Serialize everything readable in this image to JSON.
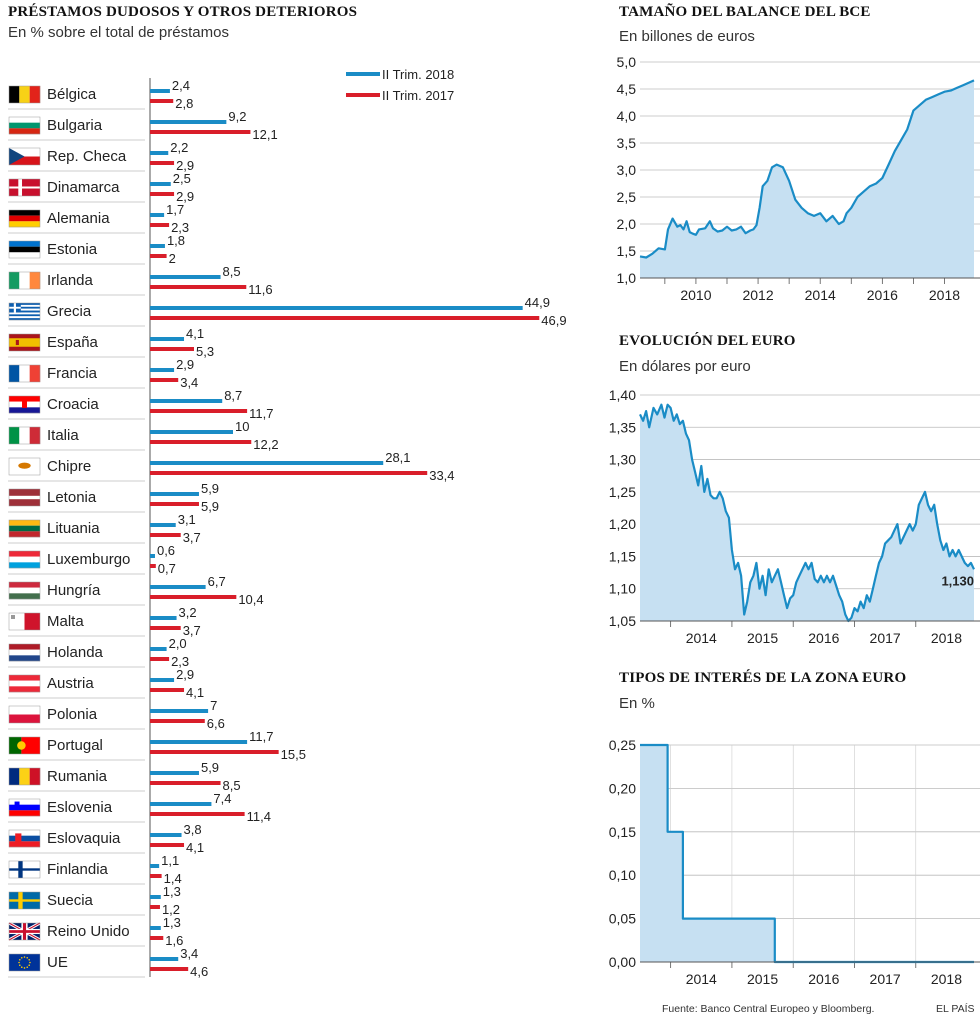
{
  "source": "Fuente: Banco Central Europeo y Bloomberg.",
  "credit": "EL PAÍS",
  "chart_data": [
    {
      "type": "bar",
      "title": "PRÉSTAMOS DUDOSOS Y OTROS DETERIOROS",
      "subtitle": "En % sobre el total de préstamos",
      "orientation": "horizontal",
      "legend_position": "top-right",
      "colors": {
        "2018": "#1a8cc6",
        "2017": "#d91e2a"
      },
      "categories": [
        "Bélgica",
        "Bulgaria",
        "Rep. Checa",
        "Dinamarca",
        "Alemania",
        "Estonia",
        "Irlanda",
        "Grecia",
        "España",
        "Francia",
        "Croacia",
        "Italia",
        "Chipre",
        "Letonia",
        "Lituania",
        "Luxemburgo",
        "Hungría",
        "Malta",
        "Holanda",
        "Austria",
        "Polonia",
        "Portugal",
        "Rumania",
        "Eslovenia",
        "Eslovaquia",
        "Finlandia",
        "Suecia",
        "Reino Unido",
        "UE"
      ],
      "flags": [
        "belgium",
        "bulgaria",
        "czech",
        "denmark",
        "germany",
        "estonia",
        "ireland",
        "greece",
        "spain",
        "france",
        "croatia",
        "italy",
        "cyprus",
        "latvia",
        "lithuania",
        "luxembourg",
        "hungary",
        "malta",
        "netherlands",
        "austria",
        "poland",
        "portugal",
        "romania",
        "slovenia",
        "slovakia",
        "finland",
        "sweden",
        "uk",
        "eu"
      ],
      "series": [
        {
          "name": "II Trim. 2018",
          "values": [
            2.4,
            9.2,
            2.2,
            2.5,
            1.7,
            1.8,
            8.5,
            44.9,
            4.1,
            2.9,
            8.7,
            10,
            28.1,
            5.9,
            3.1,
            0.6,
            6.7,
            3.2,
            2.0,
            2.9,
            7,
            11.7,
            5.9,
            7.4,
            3.8,
            1.1,
            1.3,
            1.3,
            3.4
          ],
          "labels": [
            "2,4",
            "9,2",
            "2,2",
            "2,5",
            "1,7",
            "1,8",
            "8,5",
            "44,9",
            "4,1",
            "2,9",
            "8,7",
            "10",
            "28,1",
            "5,9",
            "3,1",
            "0,6",
            "6,7",
            "3,2",
            "2,0",
            "2,9",
            "7",
            "11,7",
            "5,9",
            "7,4",
            "3,8",
            "1,1",
            "1,3",
            "1,3",
            "3,4"
          ]
        },
        {
          "name": "II Trim. 2017",
          "values": [
            2.8,
            12.1,
            2.9,
            2.9,
            2.3,
            2,
            11.6,
            46.9,
            5.3,
            3.4,
            11.7,
            12.2,
            33.4,
            5.9,
            3.7,
            0.7,
            10.4,
            3.7,
            2.3,
            4.1,
            6.6,
            15.5,
            8.5,
            11.4,
            4.1,
            1.4,
            1.2,
            1.6,
            4.6
          ],
          "labels": [
            "2,8",
            "12,1",
            "2,9",
            "2,9",
            "2,3",
            "2",
            "11,6",
            "46,9",
            "5,3",
            "3,4",
            "11,7",
            "12,2",
            "33,4",
            "5,9",
            "3,7",
            "0,7",
            "10,4",
            "3,7",
            "2,3",
            "4,1",
            "6,6",
            "15,5",
            "8,5",
            "11,4",
            "4,1",
            "1,4",
            "1,2",
            "1,6",
            "4,6"
          ]
        }
      ]
    },
    {
      "type": "area",
      "title": "TAMAÑO DEL BALANCE DEL BCE",
      "subtitle": "En billones de euros",
      "color": "#1a8cc6",
      "fill": "#c6e0f2",
      "xlim": [
        2008.2,
        2018.95
      ],
      "ylim": [
        1.0,
        5.0
      ],
      "x_ticks": [
        2010,
        2012,
        2014,
        2016,
        2018
      ],
      "x_tick_labels": [
        "2010",
        "2012",
        "2014",
        "2016",
        "2018"
      ],
      "y_ticks": [
        1.0,
        1.5,
        2.0,
        2.5,
        3.0,
        3.5,
        4.0,
        4.5,
        5.0
      ],
      "y_tick_labels": [
        "1,0",
        "1,5",
        "2,0",
        "2,5",
        "3,0",
        "3,5",
        "4,0",
        "4,5",
        "5,0"
      ],
      "grid": true,
      "x": [
        2008.2,
        2008.4,
        2008.6,
        2008.8,
        2009.0,
        2009.1,
        2009.25,
        2009.4,
        2009.5,
        2009.6,
        2009.7,
        2009.8,
        2009.9,
        2010.0,
        2010.1,
        2010.3,
        2010.45,
        2010.55,
        2010.7,
        2010.85,
        2011.0,
        2011.15,
        2011.3,
        2011.45,
        2011.6,
        2011.75,
        2011.85,
        2011.95,
        2012.05,
        2012.15,
        2012.3,
        2012.45,
        2012.6,
        2012.8,
        2013.0,
        2013.2,
        2013.4,
        2013.6,
        2013.8,
        2014.0,
        2014.2,
        2014.4,
        2014.6,
        2014.75,
        2014.85,
        2015.0,
        2015.2,
        2015.4,
        2015.6,
        2015.8,
        2016.0,
        2016.2,
        2016.4,
        2016.6,
        2016.8,
        2017.0,
        2017.2,
        2017.4,
        2017.6,
        2017.8,
        2018.0,
        2018.2,
        2018.4,
        2018.6,
        2018.8,
        2018.95
      ],
      "y": [
        1.4,
        1.38,
        1.45,
        1.55,
        1.53,
        1.9,
        2.1,
        1.95,
        1.98,
        1.9,
        2.05,
        1.85,
        1.82,
        1.8,
        1.9,
        1.92,
        2.05,
        1.92,
        1.86,
        1.88,
        1.95,
        1.88,
        1.9,
        1.95,
        1.83,
        1.88,
        1.9,
        1.98,
        2.3,
        2.7,
        2.8,
        3.05,
        3.1,
        3.05,
        2.8,
        2.45,
        2.3,
        2.2,
        2.15,
        2.2,
        2.05,
        2.15,
        2.0,
        2.05,
        2.2,
        2.3,
        2.5,
        2.6,
        2.7,
        2.75,
        2.85,
        3.1,
        3.35,
        3.55,
        3.75,
        4.1,
        4.2,
        4.3,
        4.35,
        4.4,
        4.45,
        4.47,
        4.52,
        4.57,
        4.62,
        4.66
      ]
    },
    {
      "type": "line",
      "title": "EVOLUCIÓN DEL EURO",
      "subtitle": "En dólares por euro",
      "color": "#1a8cc6",
      "fill": "#c6e0f2",
      "xlim": [
        2013.5,
        2018.95
      ],
      "ylim": [
        1.05,
        1.4
      ],
      "x_ticks": [
        2014,
        2015,
        2016,
        2017,
        2018
      ],
      "x_tick_labels": [
        "2014",
        "2015",
        "2016",
        "2017",
        "2018"
      ],
      "y_ticks": [
        1.05,
        1.1,
        1.15,
        1.2,
        1.25,
        1.3,
        1.35,
        1.4
      ],
      "y_tick_labels": [
        "1,05",
        "1,10",
        "1,15",
        "1,20",
        "1,25",
        "1,30",
        "1,35",
        "1,40"
      ],
      "grid": true,
      "annotation": "1,130",
      "x": [
        2013.5,
        2013.55,
        2013.6,
        2013.65,
        2013.72,
        2013.78,
        2013.85,
        2013.9,
        2013.95,
        2014.0,
        2014.05,
        2014.1,
        2014.15,
        2014.2,
        2014.25,
        2014.3,
        2014.35,
        2014.4,
        2014.45,
        2014.5,
        2014.55,
        2014.6,
        2014.65,
        2014.7,
        2014.75,
        2014.8,
        2014.85,
        2014.9,
        2014.95,
        2015.0,
        2015.05,
        2015.1,
        2015.15,
        2015.2,
        2015.25,
        2015.3,
        2015.35,
        2015.4,
        2015.45,
        2015.5,
        2015.55,
        2015.6,
        2015.65,
        2015.7,
        2015.75,
        2015.8,
        2015.85,
        2015.9,
        2015.95,
        2016.0,
        2016.05,
        2016.1,
        2016.15,
        2016.2,
        2016.25,
        2016.3,
        2016.35,
        2016.4,
        2016.45,
        2016.5,
        2016.55,
        2016.6,
        2016.65,
        2016.7,
        2016.75,
        2016.8,
        2016.85,
        2016.9,
        2016.95,
        2017.0,
        2017.05,
        2017.1,
        2017.15,
        2017.2,
        2017.25,
        2017.3,
        2017.35,
        2017.4,
        2017.45,
        2017.5,
        2017.55,
        2017.6,
        2017.65,
        2017.7,
        2017.75,
        2017.8,
        2017.85,
        2017.9,
        2017.95,
        2018.0,
        2018.05,
        2018.1,
        2018.15,
        2018.2,
        2018.25,
        2018.3,
        2018.35,
        2018.4,
        2018.45,
        2018.5,
        2018.55,
        2018.6,
        2018.65,
        2018.7,
        2018.75,
        2018.8,
        2018.85,
        2018.9,
        2018.95
      ],
      "y": [
        1.37,
        1.36,
        1.375,
        1.35,
        1.38,
        1.37,
        1.385,
        1.365,
        1.385,
        1.38,
        1.36,
        1.37,
        1.355,
        1.36,
        1.34,
        1.33,
        1.3,
        1.28,
        1.26,
        1.29,
        1.25,
        1.27,
        1.245,
        1.24,
        1.24,
        1.25,
        1.24,
        1.22,
        1.21,
        1.16,
        1.13,
        1.14,
        1.12,
        1.06,
        1.08,
        1.11,
        1.12,
        1.14,
        1.1,
        1.12,
        1.09,
        1.13,
        1.11,
        1.12,
        1.13,
        1.11,
        1.09,
        1.07,
        1.085,
        1.09,
        1.11,
        1.12,
        1.13,
        1.14,
        1.13,
        1.14,
        1.115,
        1.11,
        1.12,
        1.11,
        1.12,
        1.11,
        1.12,
        1.105,
        1.09,
        1.08,
        1.06,
        1.05,
        1.055,
        1.07,
        1.065,
        1.08,
        1.07,
        1.09,
        1.08,
        1.1,
        1.12,
        1.14,
        1.15,
        1.17,
        1.175,
        1.18,
        1.19,
        1.2,
        1.17,
        1.18,
        1.19,
        1.2,
        1.19,
        1.2,
        1.23,
        1.24,
        1.25,
        1.23,
        1.22,
        1.23,
        1.2,
        1.175,
        1.16,
        1.17,
        1.15,
        1.16,
        1.15,
        1.16,
        1.15,
        1.14,
        1.135,
        1.14,
        1.13
      ]
    },
    {
      "type": "area",
      "title": "TIPOS DE INTERÉS DE LA ZONA EURO",
      "subtitle": "En %",
      "color": "#1a8cc6",
      "fill": "#c6e0f2",
      "step": true,
      "xlim": [
        2013.5,
        2018.95
      ],
      "ylim": [
        0.0,
        0.25
      ],
      "x_ticks": [
        2014,
        2015,
        2016,
        2017,
        2018
      ],
      "x_tick_labels": [
        "2014",
        "2015",
        "2016",
        "2017",
        "2018"
      ],
      "y_ticks": [
        0.0,
        0.05,
        0.1,
        0.15,
        0.2,
        0.25
      ],
      "y_tick_labels": [
        "0,00",
        "0,05",
        "0,10",
        "0,15",
        "0,20",
        "0,25"
      ],
      "grid": true,
      "x": [
        2013.5,
        2013.95,
        2014.2,
        2015.7,
        2018.95
      ],
      "y": [
        0.25,
        0.15,
        0.05,
        0.0,
        0.0
      ]
    }
  ]
}
